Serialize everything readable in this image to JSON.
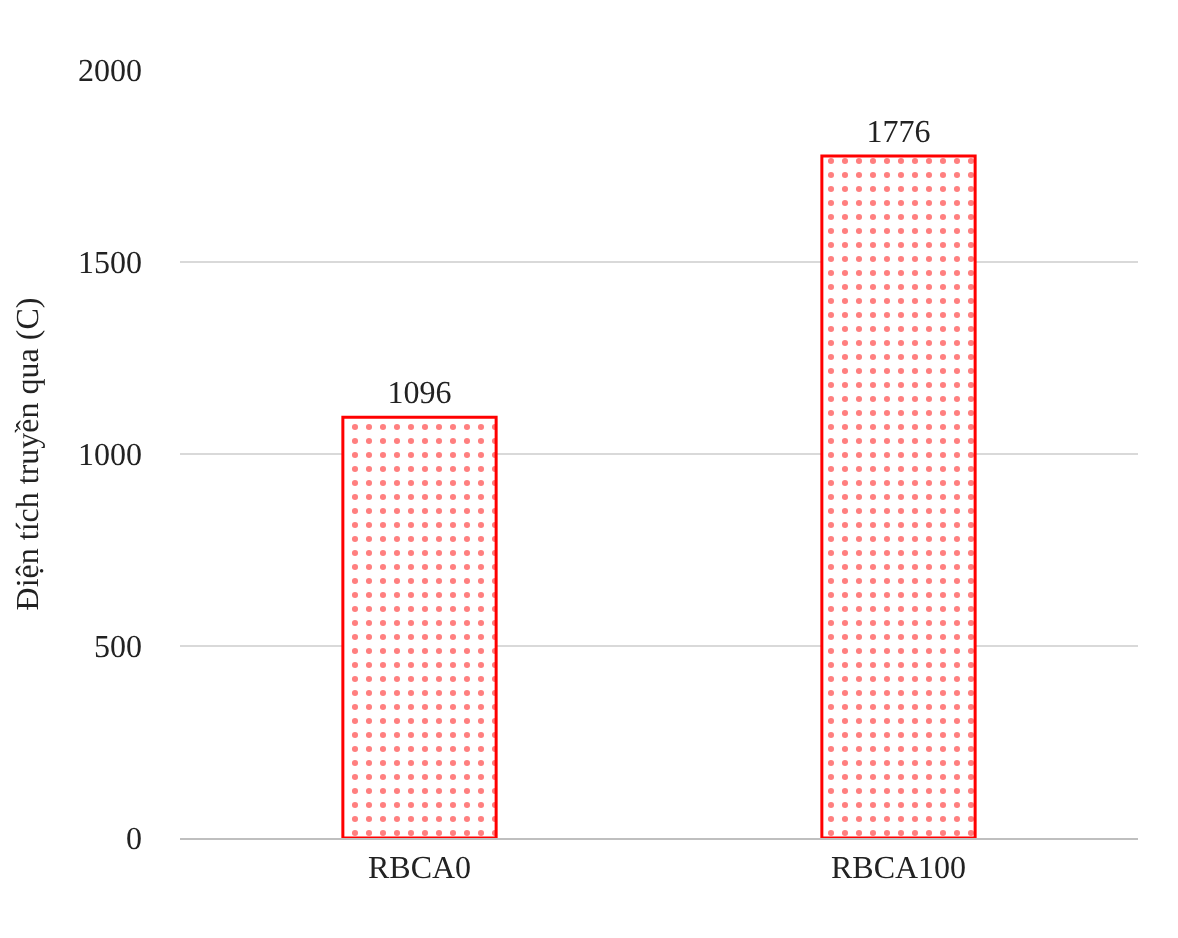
{
  "chart_data": {
    "type": "bar",
    "ylabel": "Điện tích truyền qua (C)",
    "categories": [
      "RBCA0",
      "RBCA100"
    ],
    "values": [
      1096,
      1776
    ],
    "color": "#ff0000",
    "ylim": [
      0,
      2000
    ],
    "yticks": [
      0,
      500,
      1000,
      1500,
      2000
    ],
    "grid": "y",
    "data_labels": true,
    "legend": false
  }
}
